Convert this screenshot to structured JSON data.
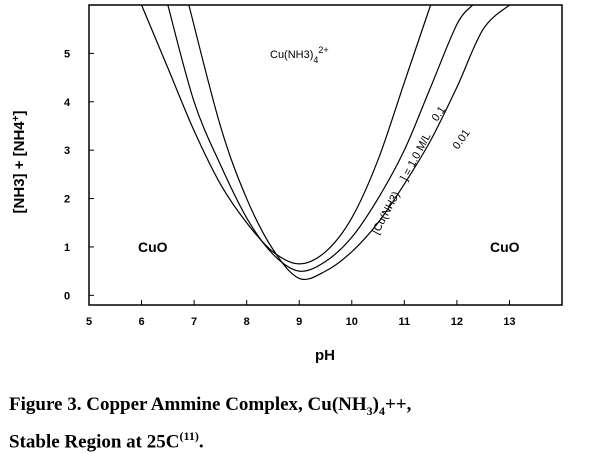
{
  "chart_data": {
    "type": "line",
    "xlabel": "pH",
    "ylabel": "[NH3] + [NH4+]",
    "xlim": [
      5,
      14
    ],
    "ylim": [
      -0.2,
      6
    ],
    "x_ticks": [
      "5",
      "6",
      "7",
      "8",
      "9",
      "10",
      "11",
      "12",
      "13"
    ],
    "y_ticks": [
      "0",
      "1",
      "2",
      "3",
      "4",
      "5"
    ],
    "grid": false,
    "series": [
      {
        "name": "[Cu(NH3)4] = 1.0 M/L",
        "x": [
          6.0,
          6.5,
          7.0,
          7.5,
          8.0,
          8.5,
          9.0,
          9.5,
          10.0,
          10.5,
          11.0,
          11.5
        ],
        "y": [
          6.0,
          4.7,
          3.4,
          2.3,
          1.5,
          0.9,
          0.65,
          0.9,
          1.6,
          2.8,
          4.4,
          6.0
        ]
      },
      {
        "name": "0.1",
        "x": [
          6.5,
          7.0,
          7.5,
          8.0,
          8.5,
          9.0,
          9.5,
          10.0,
          10.5,
          11.0,
          11.5,
          12.0,
          12.3
        ],
        "y": [
          6.0,
          4.0,
          2.7,
          1.6,
          0.85,
          0.5,
          0.7,
          1.2,
          2.0,
          3.0,
          4.3,
          5.6,
          6.0
        ]
      },
      {
        "name": "0.01",
        "x": [
          6.9,
          7.5,
          8.0,
          8.5,
          9.0,
          9.5,
          10.0,
          10.5,
          11.0,
          11.5,
          12.0,
          12.5,
          13.0
        ],
        "y": [
          6.0,
          3.5,
          2.0,
          0.95,
          0.35,
          0.5,
          0.9,
          1.5,
          2.3,
          3.2,
          4.3,
          5.5,
          6.0
        ]
      }
    ],
    "annotations": {
      "complex_region": "Cu(NH3)4 2+",
      "left_region": "CuO",
      "right_region": "CuO",
      "curve_labels": [
        "[Cu(NH3)",
        "] = 1.0 M/L",
        "0.1",
        "0.01"
      ]
    }
  },
  "caption": {
    "line1": "Figure 3.  Copper Ammine Complex, Cu(NH3)4++,",
    "line2": "Stable Region at 25C(11)."
  }
}
